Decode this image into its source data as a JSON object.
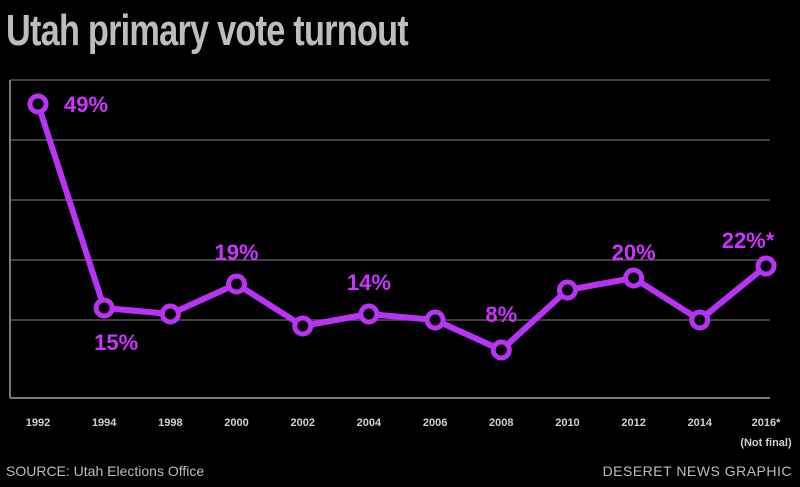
{
  "title": "Utah primary vote turnout",
  "source": "SOURCE: Utah Elections Office",
  "credit": "DESERET NEWS GRAPHIC",
  "colors": {
    "background": "#000000",
    "line": "#b833f5",
    "text": "#bdbdbd",
    "grid": "#555555"
  },
  "chart_data": {
    "type": "line",
    "title": "Utah primary vote turnout",
    "xlabel": "",
    "ylabel": "",
    "ylim": [
      0,
      50
    ],
    "grid": true,
    "categories": [
      "1992",
      "1994",
      "1998",
      "2000",
      "2002",
      "2004",
      "2006",
      "2008",
      "2010",
      "2012",
      "2014",
      "2016*"
    ],
    "category_notes": {
      "2016*": "(Not final)"
    },
    "series": [
      {
        "values": [
          49,
          15,
          14,
          19,
          12,
          14,
          13,
          8,
          18,
          20,
          13,
          22
        ]
      }
    ],
    "data_labels": [
      {
        "index": 0,
        "text": "49%"
      },
      {
        "index": 1,
        "text": "15%"
      },
      {
        "index": 3,
        "text": "19%"
      },
      {
        "index": 5,
        "text": "14%"
      },
      {
        "index": 7,
        "text": "8%"
      },
      {
        "index": 9,
        "text": "20%"
      },
      {
        "index": 11,
        "text": "22%*"
      }
    ]
  }
}
